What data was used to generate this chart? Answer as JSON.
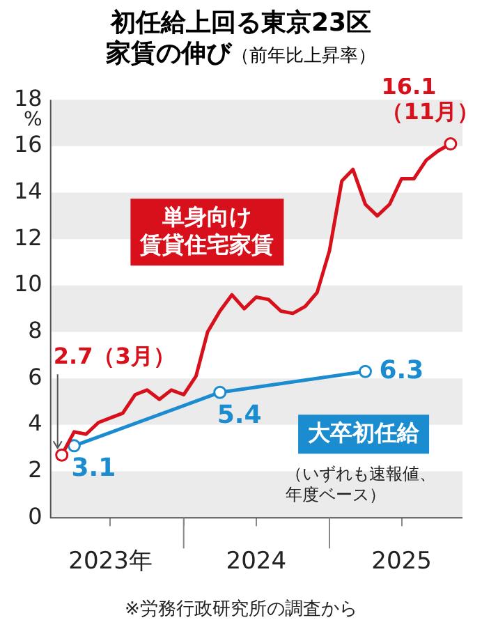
{
  "chart_data": {
    "type": "line",
    "title": "初任給上回る東京23区家賃の伸び",
    "subtitle": "（前年比上昇率）",
    "ylabel": "%",
    "xlim": [
      "2023-02",
      "2025-12"
    ],
    "xticks": [
      {
        "value": "2023-07",
        "label": "2023年"
      },
      {
        "value": "2024-01",
        "label": null
      },
      {
        "value": "2024-07",
        "label": "2024"
      },
      {
        "value": "2025-01",
        "label": null
      },
      {
        "value": "2025-07",
        "label": "2025"
      }
    ],
    "ylim": [
      0,
      18
    ],
    "yticks": [
      0,
      2,
      4,
      6,
      8,
      10,
      12,
      14,
      16,
      18
    ],
    "grid": false,
    "legend": false,
    "bands": [
      {
        "axis": "y",
        "from": 0,
        "to": 2,
        "color": "#ebebeb"
      },
      {
        "axis": "y",
        "from": 4,
        "to": 6,
        "color": "#ebebeb"
      },
      {
        "axis": "y",
        "from": 8,
        "to": 10,
        "color": "#ebebeb"
      },
      {
        "axis": "y",
        "from": 12,
        "to": 14,
        "color": "#ebebeb"
      },
      {
        "axis": "y",
        "from": 16,
        "to": 18,
        "color": "#ebebeb"
      }
    ],
    "series": [
      {
        "name": "単身向け賃貸住宅家賃",
        "color": "#d7101b",
        "marker": "none",
        "x": [
          "2023-03",
          "2023-04",
          "2023-05",
          "2023-06",
          "2023-07",
          "2023-08",
          "2023-09",
          "2023-10",
          "2023-11",
          "2023-12",
          "2024-01",
          "2024-02",
          "2024-03",
          "2024-04",
          "2024-05",
          "2024-06",
          "2024-07",
          "2024-08",
          "2024-09",
          "2024-10",
          "2024-11",
          "2024-12",
          "2025-01",
          "2025-02",
          "2025-03",
          "2025-04",
          "2025-05",
          "2025-06",
          "2025-07",
          "2025-08",
          "2025-09",
          "2025-10",
          "2025-11"
        ],
        "values": [
          2.7,
          3.7,
          3.6,
          4.1,
          4.3,
          4.5,
          5.3,
          5.5,
          5.1,
          5.5,
          5.3,
          6.1,
          8.0,
          8.9,
          9.6,
          9.0,
          9.5,
          9.4,
          8.9,
          8.8,
          9.1,
          9.7,
          11.5,
          14.5,
          15.0,
          13.5,
          13.0,
          13.5,
          14.6,
          14.6,
          15.4,
          15.8,
          16.1
        ]
      },
      {
        "name": "大卒初任給",
        "color": "#1a8ccf",
        "marker": "circle",
        "x": [
          "2023-04",
          "2024-04",
          "2025-04"
        ],
        "values": [
          3.1,
          5.4,
          6.3
        ],
        "value_labels": [
          "3.1",
          "5.4",
          "6.3"
        ]
      }
    ],
    "annotations": [
      {
        "text": "2.7（3月）",
        "x": "2023-03",
        "y": 2.7
      },
      {
        "text": "16.1\n（11月）",
        "x": "2025-11",
        "y": 16.1
      },
      "（いずれも速報値、年度ベース）",
      "※労務行政研究所の調査から"
    ]
  }
}
